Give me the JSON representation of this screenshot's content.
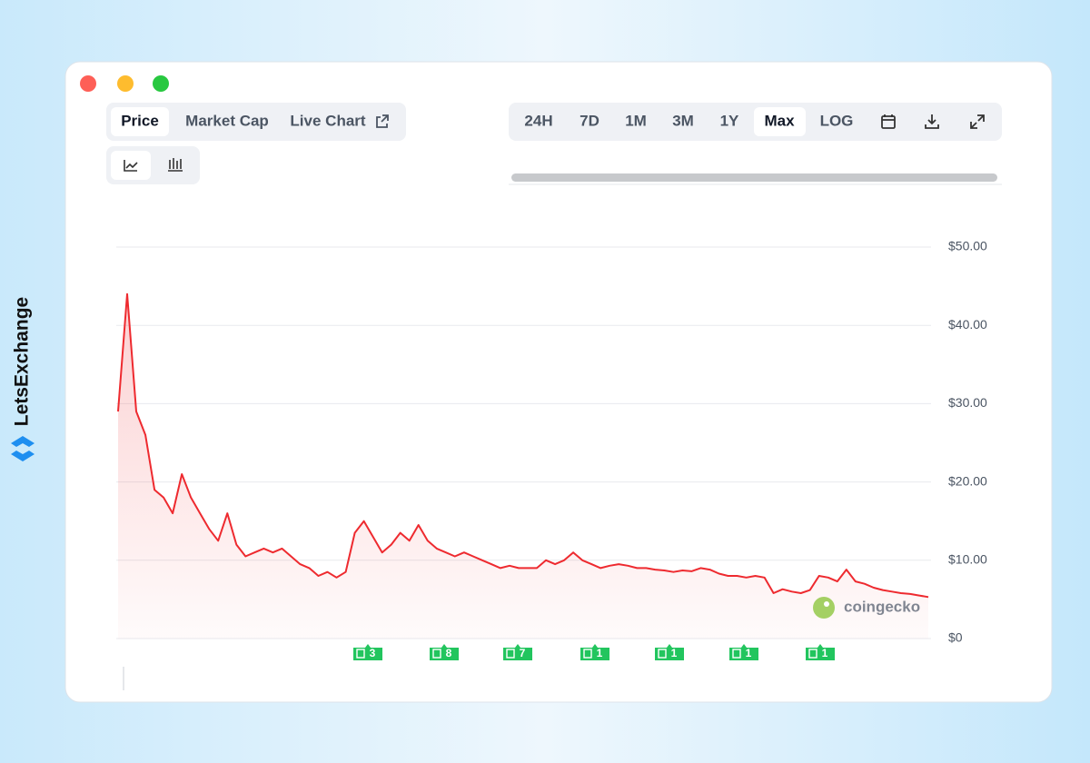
{
  "ui": {
    "brand": "LetsExchange",
    "tabs": [
      "Price",
      "Market Cap",
      "Live Chart"
    ],
    "ranges": [
      "24H",
      "7D",
      "1M",
      "3M",
      "1Y",
      "Max",
      "LOG"
    ],
    "watermark": "coingecko",
    "news_markers": [
      "3",
      "8",
      "7",
      "1",
      "1",
      "1",
      "1"
    ]
  },
  "chart_data": {
    "type": "line",
    "color": "#ee2a2f",
    "grid": true,
    "ylim": [
      0,
      50
    ],
    "yticks": [
      {
        "value": 0,
        "label": "$0"
      },
      {
        "value": 10,
        "label": "$10.00"
      },
      {
        "value": 20,
        "label": "$20.00"
      },
      {
        "value": 30,
        "label": "$30.00"
      },
      {
        "value": 40,
        "label": "$40.00"
      },
      {
        "value": 50,
        "label": "$50.00"
      }
    ],
    "values": [
      29,
      44,
      29,
      26,
      19,
      18,
      16,
      21,
      18,
      16,
      14,
      12.5,
      16,
      12,
      10.5,
      11,
      11.5,
      11,
      11.5,
      10.5,
      9.5,
      9,
      8,
      8.5,
      7.8,
      8.5,
      13.5,
      15,
      13,
      11,
      12,
      13.5,
      12.5,
      14.5,
      12.5,
      11.5,
      11,
      10.5,
      11,
      10.5,
      10,
      9.5,
      9,
      9.3,
      9,
      9,
      9,
      10,
      9.5,
      10,
      11,
      10,
      9.5,
      9,
      9.3,
      9.5,
      9.3,
      9,
      9,
      8.8,
      8.7,
      8.5,
      8.7,
      8.6,
      9,
      8.8,
      8.3,
      8,
      8,
      7.8,
      8,
      7.8,
      5.8,
      6.3,
      6,
      5.8,
      6.2,
      8,
      7.8,
      7.3,
      8.8,
      7.3,
      7,
      6.5,
      6.2,
      6,
      5.8,
      5.7,
      5.5,
      5.3
    ]
  }
}
